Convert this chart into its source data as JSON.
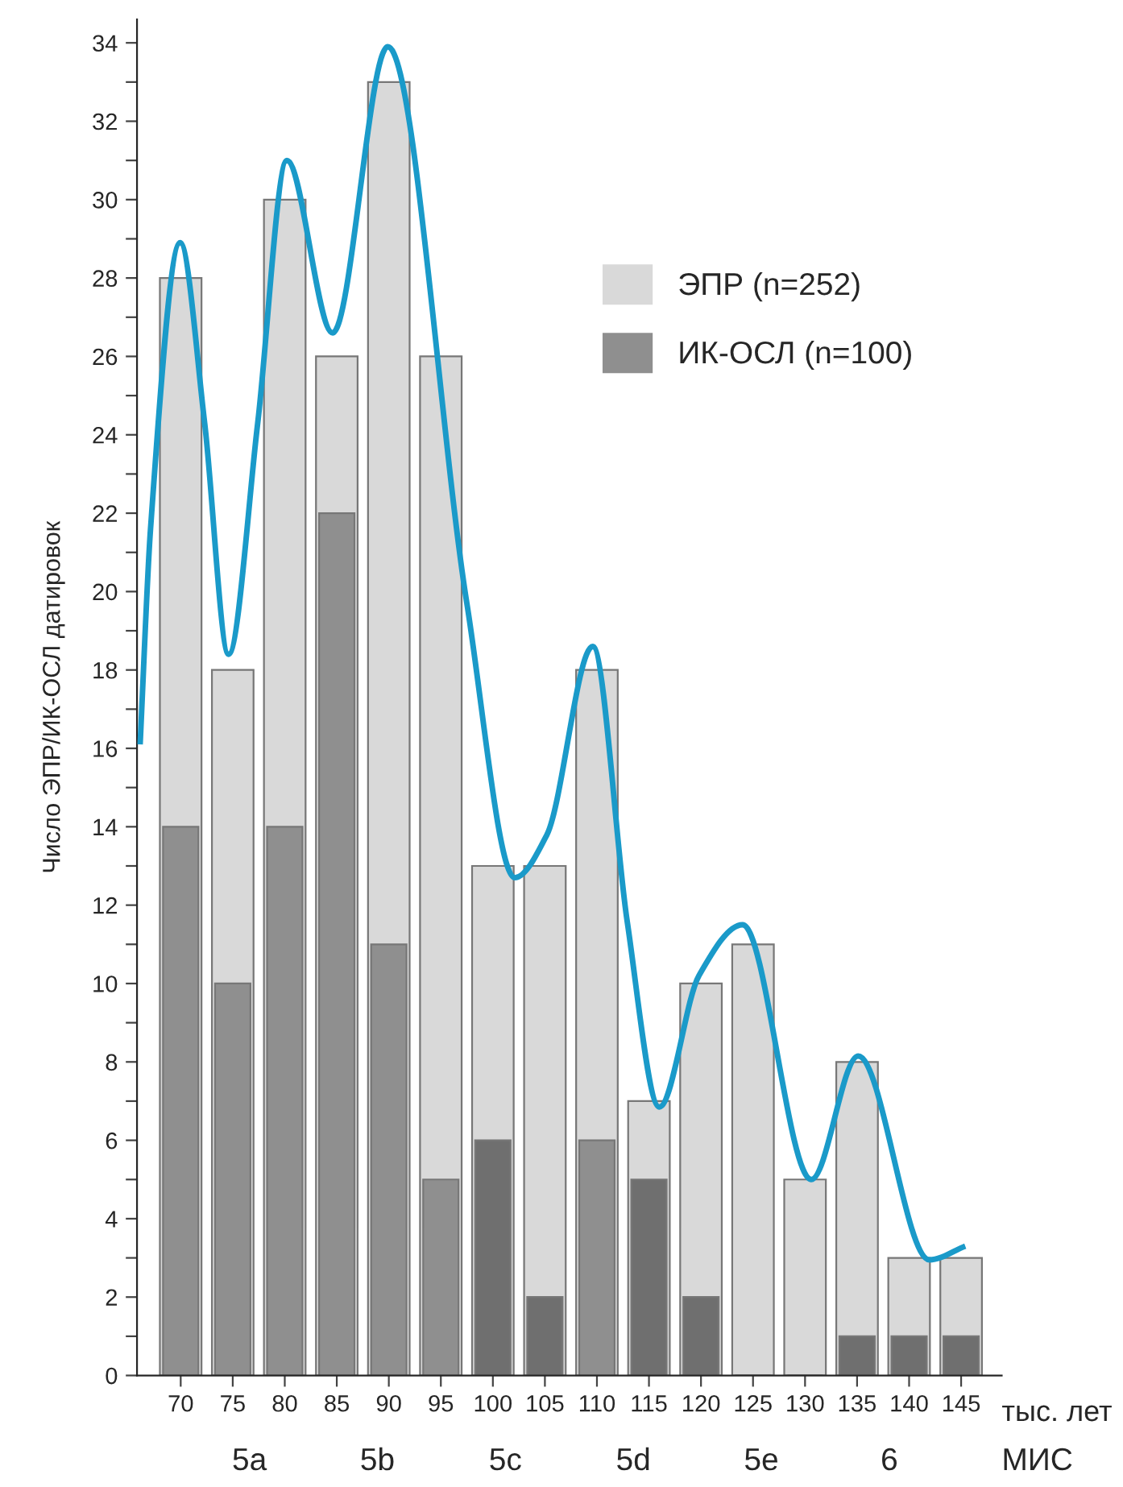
{
  "chart_data": {
    "type": "bar",
    "ylabel": "Число ЭПР/ИК-ОСЛ датировок",
    "xlabel": "тыс. лет",
    "x": [
      70,
      75,
      80,
      85,
      90,
      95,
      100,
      105,
      110,
      115,
      120,
      125,
      130,
      135,
      140,
      145
    ],
    "series": [
      {
        "name": "ЭПР (n=252)",
        "color": "#d9d9d9",
        "values": [
          28,
          18,
          30,
          26,
          33,
          26,
          13,
          13,
          18,
          7,
          10,
          11,
          5,
          8,
          3,
          3
        ]
      },
      {
        "name": "ИК-ОСЛ (n=100)",
        "color": "#8f8f8f",
        "colors": [
          "#8f8f8f",
          "#8f8f8f",
          "#8f8f8f",
          "#8f8f8f",
          "#8f8f8f",
          "#8f8f8f",
          "#6f6f6f",
          "#6f6f6f",
          "#8f8f8f",
          "#6f6f6f",
          "#6f6f6f",
          "#6f6f6f",
          "#6f6f6f",
          "#6f6f6f",
          "#6f6f6f",
          "#6f6f6f"
        ],
        "values": [
          14,
          10,
          14,
          22,
          11,
          5,
          6,
          2,
          6,
          5,
          2,
          0,
          0,
          1,
          1,
          1
        ]
      },
      {
        "type": "line",
        "color": "#1a9ac9",
        "x": [
          66.1,
          67.1,
          69.95,
          72.3,
          74.6,
          77.4,
          80.2,
          84.6,
          89.9,
          97.5,
          102.1,
          105.2,
          109.6,
          112.9,
          116.0,
          119.8,
          124.0,
          130.6,
          135.1,
          141.95,
          145.4
        ],
        "values": [
          16.1,
          21.6,
          28.9,
          24.3,
          18.4,
          24.3,
          31.0,
          26.6,
          33.9,
          19.7,
          12.7,
          13.8,
          18.6,
          11.6,
          6.85,
          10.2,
          11.5,
          5.0,
          8.15,
          2.95,
          3.3
        ]
      }
    ],
    "xlim": [
      65.8,
      148.9
    ],
    "ylim": [
      0,
      34.6
    ],
    "xticks": [
      70,
      75,
      80,
      85,
      90,
      95,
      100,
      105,
      110,
      115,
      120,
      125,
      130,
      135,
      140,
      145
    ],
    "yticks": [
      0,
      {
        "value": 1,
        "label": null
      },
      2,
      {
        "value": 3,
        "label": null
      },
      4,
      {
        "value": 5,
        "label": null
      },
      6,
      {
        "value": 7,
        "label": null
      },
      8,
      {
        "value": 9,
        "label": null
      },
      10,
      {
        "value": 11,
        "label": null
      },
      12,
      {
        "value": 13,
        "label": null
      },
      14,
      {
        "value": 15,
        "label": null
      },
      16,
      {
        "value": 17,
        "label": null
      },
      18,
      {
        "value": 19,
        "label": null
      },
      20,
      {
        "value": 21,
        "label": null
      },
      22,
      {
        "value": 23,
        "label": null
      },
      24,
      {
        "value": 25,
        "label": null
      },
      26,
      {
        "value": 27,
        "label": null
      },
      28,
      {
        "value": 29,
        "label": null
      },
      30,
      {
        "value": 31,
        "label": null
      },
      32,
      {
        "value": 33,
        "label": null
      },
      34
    ],
    "annotations": [
      "5a",
      "5b",
      "5c",
      "5d",
      "5e",
      "6",
      "МИС"
    ],
    "grid": false,
    "legend": "top right"
  }
}
